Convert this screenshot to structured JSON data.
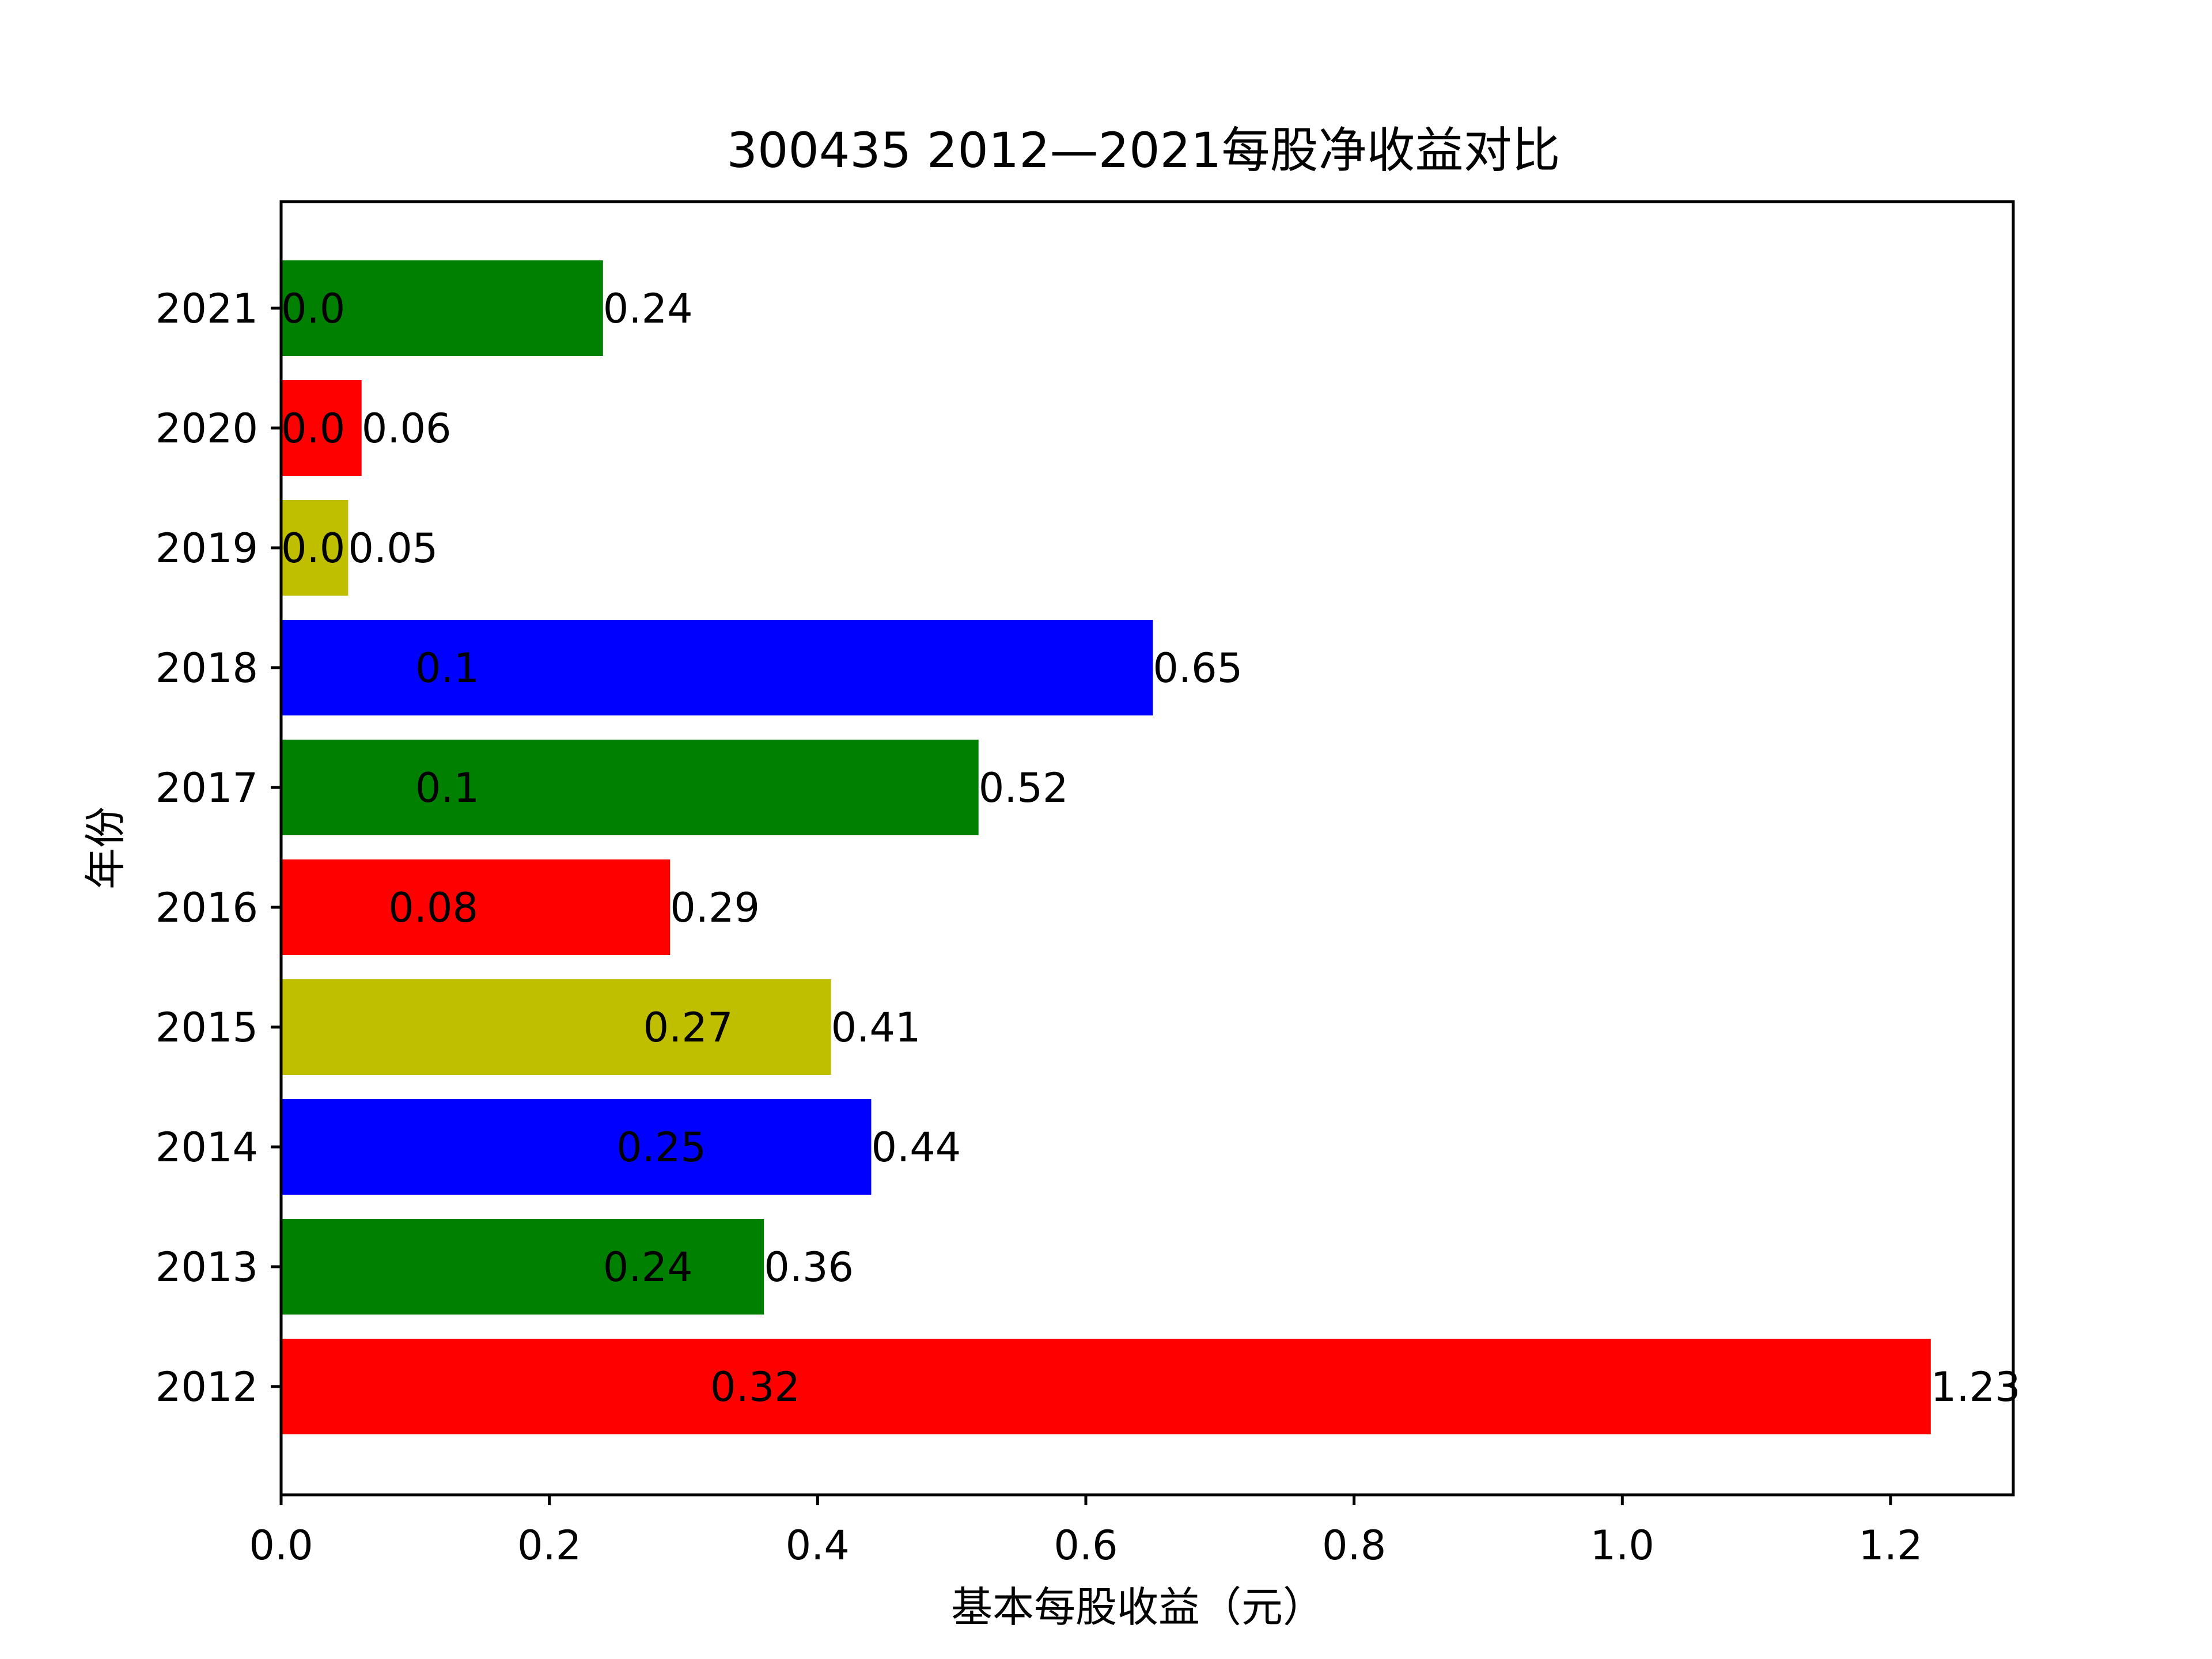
{
  "chart_data": {
    "type": "bar",
    "orientation": "horizontal",
    "title": "300435 2012—2021每股净收益对比",
    "xlabel": "基本每股收益（元）",
    "ylabel": "年份",
    "categories": [
      "2012",
      "2013",
      "2014",
      "2015",
      "2016",
      "2017",
      "2018",
      "2019",
      "2020",
      "2021"
    ],
    "values": [
      1.23,
      0.36,
      0.44,
      0.41,
      0.29,
      0.52,
      0.65,
      0.05,
      0.06,
      0.24
    ],
    "value_labels": [
      "1.23",
      "0.36",
      "0.44",
      "0.41",
      "0.29",
      "0.52",
      "0.65",
      "0.05",
      "0.06",
      "0.24"
    ],
    "inner_labels": [
      "0.32",
      "0.24",
      "0.25",
      "0.27",
      "0.08",
      "0.1",
      "0.1",
      "0.0",
      "0.0",
      "0.0"
    ],
    "inner_label_values": [
      0.32,
      0.24,
      0.25,
      0.27,
      0.08,
      0.1,
      0.1,
      0.0,
      0.0,
      0.0
    ],
    "colors": [
      "#ff0000",
      "#008000",
      "#0000ff",
      "#bfbf00",
      "#ff0000",
      "#008000",
      "#0000ff",
      "#bfbf00",
      "#ff0000",
      "#008000"
    ],
    "xlim": [
      0,
      1.2915
    ],
    "xticks": [
      0.0,
      0.2,
      0.4,
      0.6,
      0.8,
      1.0,
      1.2
    ],
    "xtick_labels": [
      "0.0",
      "0.2",
      "0.4",
      "0.6",
      "0.8",
      "1.0",
      "1.2"
    ],
    "grid": false,
    "legend": "none"
  }
}
